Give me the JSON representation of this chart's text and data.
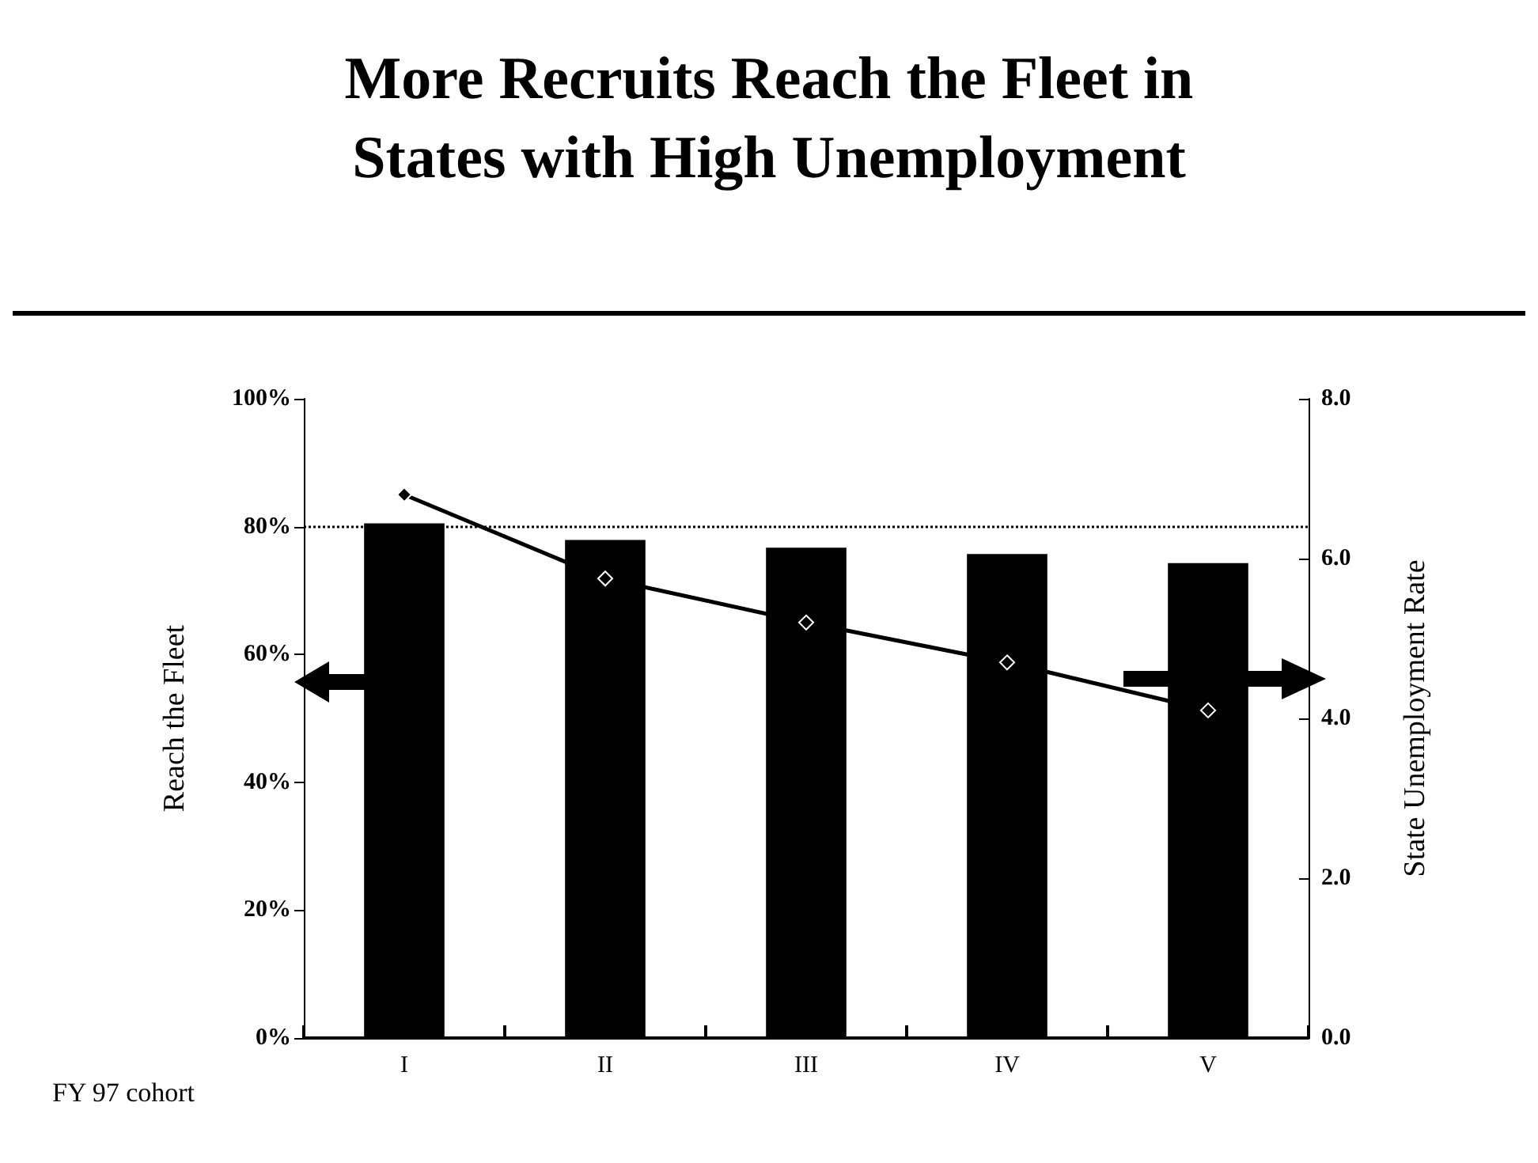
{
  "chart_data": {
    "type": "bar",
    "title": "More Recruits Reach the Fleet in\nStates with High Unemployment",
    "xlabel": "FY 97 cohort",
    "ylabel": "Reach the Fleet",
    "y2label": "State Unemployment Rate",
    "categories": [
      "I",
      "II",
      "III",
      "IV",
      "V"
    ],
    "series": [
      {
        "color": "#000000",
        "values": [
          80.5,
          77.9,
          76.7,
          75.7,
          74.3
        ]
      },
      {
        "type": "line",
        "axis": "y2",
        "color": "#000000",
        "values": [
          6.8,
          5.75,
          5.2,
          4.7,
          4.1
        ]
      }
    ],
    "ylim": [
      0,
      100
    ],
    "yticks": [
      {
        "value": 0,
        "label": "0%"
      },
      {
        "value": 20,
        "label": "20%"
      },
      {
        "value": 40,
        "label": "40%"
      },
      {
        "value": 60,
        "label": "60%"
      },
      {
        "value": 80,
        "label": "80%"
      },
      {
        "value": 100,
        "label": "100%"
      }
    ],
    "y2lim": [
      0,
      8
    ],
    "y2ticks": [
      {
        "value": 0,
        "label": "0.0"
      },
      {
        "value": 2,
        "label": "2.0"
      },
      {
        "value": 4,
        "label": "4.0"
      },
      {
        "value": 6,
        "label": "6.0"
      },
      {
        "value": 8,
        "label": "8.0"
      }
    ],
    "ref_lines": [
      {
        "axis": "y",
        "value": 80,
        "color": "#000000",
        "line_style": "dotted"
      }
    ],
    "grid": false,
    "marker": "diamond"
  }
}
